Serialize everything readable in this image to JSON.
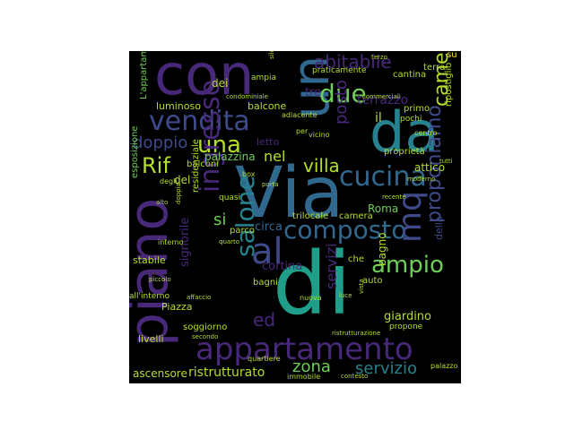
{
  "palette": {
    "purple": "#482878",
    "violet": "#440154",
    "indigo": "#3e4a89",
    "blue": "#31688e",
    "teal": "#26828e",
    "green": "#1f9e89",
    "lightgreen": "#35b779",
    "lime": "#6ece58",
    "yellowgreen": "#b5de2b",
    "yellow": "#fde725"
  },
  "words": {
    "con": "con",
    "un": "un",
    "da": "da",
    "via": "Via",
    "di": "di",
    "piano": "piano",
    "appartamento": "appartamento",
    "vendita": "vendita",
    "una": "una",
    "abitabile": "abitabile",
    "due": "due",
    "cucina": "cucina",
    "composto": "composto",
    "ingresso": "ingresso",
    "salone": "salone",
    "al": "al",
    "mq": "mq",
    "ampio": "ampio",
    "proponiamo": "proponiamo",
    "camere": "camere",
    "rif": "Rif",
    "villa": "villa",
    "nel": "nel",
    "doppio": "doppio",
    "posto": "posto",
    "terrazzo": "terrazzo",
    "zona": "zona",
    "servizio": "servizio",
    "servizi": "servizi",
    "ristrutturato": "ristrutturato",
    "ascensore": "ascensore",
    "giardino": "giardino",
    "tre": "tre",
    "luminoso": "luminoso",
    "balcone": "balcone",
    "balconi": "balconi",
    "palazzina": "palazzina",
    "il": "il",
    "attico": "attico",
    "roma": "Roma",
    "circa": "circa",
    "trilocale": "trilocale",
    "camera": "camera",
    "parco": "parco",
    "cortina": "cortina",
    "bagni": "bagni",
    "bagno": "bagno",
    "signorile": "signorile",
    "residenziale": "residenziale",
    "si": "si",
    "soggiorno": "soggiorno",
    "piazza": "Piazza",
    "ed": "ed",
    "stabile": "stabile",
    "livelli": "livelli",
    "esposizione": "esposizione",
    "l_appartamento": "L'appartamento",
    "dei": "dei",
    "ampia": "ampia",
    "su": "su",
    "terra": "terra",
    "cantina": "cantina",
    "primo": "primo",
    "ripostiglio": "ripostiglio",
    "pochi": "pochi",
    "centro": "centro",
    "adiacente": "adiacente",
    "della": "della",
    "proprieta": "proprietà",
    "auto": "auto",
    "nuova": "nuova",
    "immobile": "immobile",
    "palazzo": "palazzo",
    "contesto": "contesto",
    "quartiere": "quartiere",
    "del": "del",
    "degli": "degli",
    "box": "box",
    "letto": "letto",
    "vicino": "vicino",
    "terzo": "terzo",
    "secondo": "secondo",
    "piccolo": "piccolo",
    "doppia": "doppia",
    "interno": "interno",
    "all_interno": "all'interno",
    "che": "che",
    "propone": "propone",
    "praticamente": "praticamente",
    "commerciali": "commerciali",
    "condominiale": "condominiale",
    "silenzioso": "silenzioso",
    "moderno": "moderno",
    "recente": "recente",
    "tutti": "tutti",
    "porta": "porta",
    "quasi": "quasi",
    "affaccio": "affaccio",
    "alto": "alto",
    "quarto": "quarto",
    "per": "per",
    "ristrutturazione": "ristrutturazione",
    "luce": "luce",
    "vista": "vista"
  }
}
